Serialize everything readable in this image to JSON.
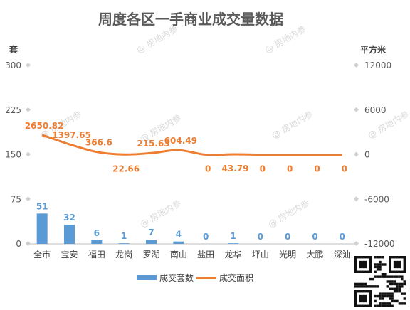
{
  "watermark": "@ 房地内参",
  "chart_data": {
    "type": "bar+line",
    "title": "周度各区一手商业成交量数据",
    "categories": [
      "全市",
      "宝安",
      "福田",
      "龙岗",
      "罗湖",
      "南山",
      "盐田",
      "龙华",
      "坪山",
      "光明",
      "大鹏",
      "深汕"
    ],
    "y_left": {
      "label": "套",
      "ylim": [
        0,
        300
      ],
      "ticks": [
        0,
        75,
        150,
        225,
        300
      ]
    },
    "y_right": {
      "label": "平方米",
      "ylim": [
        -12000,
        12000
      ],
      "ticks": [
        -12000,
        -6000,
        0,
        6000,
        12000
      ]
    },
    "series": [
      {
        "name": "成交套数",
        "type": "bar",
        "axis": "left",
        "color": "#5b9bd5",
        "values": [
          51,
          32,
          6,
          1,
          7,
          4,
          0,
          1,
          0,
          0,
          0,
          0
        ]
      },
      {
        "name": "成交面积",
        "type": "line",
        "axis": "right",
        "color": "#ed7d31",
        "values": [
          2650.82,
          1397.65,
          366.6,
          22.66,
          215.63,
          604.49,
          0,
          43.79,
          0,
          0,
          0,
          0
        ],
        "labels": [
          "2650.82",
          "1397.65",
          "366.6",
          "22.66",
          "215.63",
          "604.49",
          "0",
          "43.79",
          "0",
          "0",
          "0",
          "0"
        ]
      }
    ],
    "grid": false,
    "legend": "bottom"
  }
}
